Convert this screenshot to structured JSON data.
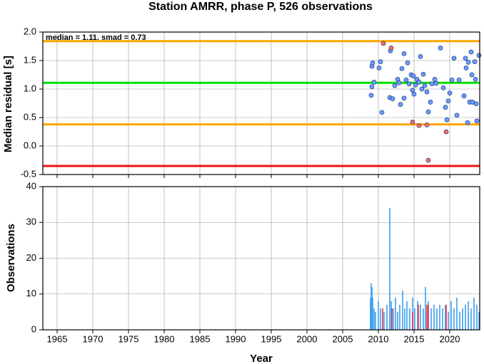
{
  "chart_data": [
    {
      "type": "scatter",
      "title": "Station AMRR, phase P, 526 observations",
      "annotation": "median = 1.11, smad = 0.73",
      "y_label": "Median residual [s]",
      "xlim": [
        1963,
        2024.2
      ],
      "ylim": [
        -0.5,
        2.0
      ],
      "yticks": [
        {
          "value": 2.0,
          "label": "2.0"
        },
        {
          "value": 1.5,
          "label": "1.5"
        },
        {
          "value": 1.0,
          "label": "1.0"
        },
        {
          "value": 0.5,
          "label": "0.5"
        },
        {
          "value": 0.0,
          "label": "0.0"
        },
        {
          "value": -0.5,
          "label": "-0.5"
        }
      ],
      "grid": true,
      "reference_lines": [
        {
          "value": 1.84,
          "color": "#ffa500"
        },
        {
          "value": 1.11,
          "color": "#00e000"
        },
        {
          "value": 0.38,
          "color": "#ffa500"
        },
        {
          "value": -0.35,
          "color": "#ee1111"
        }
      ],
      "series": [
        {
          "color": "#6f9cff",
          "x": [
            2009.0,
            2009.1,
            2009.1,
            2009.2,
            2009.4,
            2010.1,
            2010.3,
            2010.5,
            2011.7,
            2011.6,
            2012.0,
            2012.3,
            2012.7,
            2012.9,
            2013.1,
            2013.3,
            2013.6,
            2013.6,
            2013.9,
            2014.1,
            2014.3,
            2014.6,
            2014.9,
            2014.8,
            2015.0,
            2015.2,
            2015.4,
            2015.7,
            2015.9,
            2016.1,
            2016.3,
            2016.5,
            2016.8,
            2017.0,
            2017.3,
            2017.5,
            2017.9,
            2018.1,
            2018.7,
            2019.1,
            2019.4,
            2019.6,
            2019.8,
            2020.0,
            2020.3,
            2020.6,
            2021.0,
            2021.3,
            2022.0,
            2022.2,
            2022.3,
            2022.5,
            2022.6,
            2022.8,
            2023.0,
            2023.1,
            2023.2,
            2023.5,
            2023.6,
            2023.7,
            2023.8,
            2024.1
          ],
          "values": [
            0.89,
            1.04,
            1.4,
            1.46,
            1.12,
            1.37,
            1.48,
            0.59,
            1.67,
            0.85,
            0.83,
            1.06,
            1.17,
            1.11,
            0.73,
            1.36,
            1.62,
            0.84,
            1.16,
            1.46,
            1.09,
            1.25,
            1.23,
            0.98,
            0.91,
            1.07,
            1.17,
            1.12,
            1.57,
            1.0,
            1.26,
            1.06,
            0.95,
            0.6,
            0.77,
            1.09,
            1.17,
            1.1,
            1.72,
            1.02,
            0.68,
            0.46,
            0.79,
            0.93,
            1.16,
            1.54,
            0.54,
            1.16,
            0.88,
            1.54,
            1.37,
            0.41,
            1.47,
            0.77,
            1.65,
            1.25,
            0.77,
            1.48,
            1.17,
            0.74,
            0.44,
            1.59
          ]
        },
        {
          "color": "#ff6f5e",
          "x": [
            2010.7,
            2011.8,
            2014.8,
            2015.7,
            2016.8,
            2017.0,
            2019.5
          ],
          "values": [
            1.8,
            1.72,
            0.42,
            0.36,
            0.37,
            -0.25,
            0.25
          ]
        }
      ]
    },
    {
      "type": "bar",
      "x_label": "Year",
      "y_label": "Observations",
      "xlim": [
        1963,
        2024.2
      ],
      "ylim": [
        0,
        40
      ],
      "xticks": [
        1965,
        1970,
        1975,
        1980,
        1985,
        1990,
        1995,
        2000,
        2005,
        2010,
        2015,
        2020
      ],
      "yticks": [
        0,
        10,
        20,
        30,
        40
      ],
      "grid": true,
      "series": [
        {
          "color": "#3a9ff0",
          "x": [
            2008.9,
            2009.0,
            2009.1,
            2009.2,
            2009.4,
            2009.6,
            2010.0,
            2010.3,
            2010.8,
            2011.2,
            2011.6,
            2011.8,
            2012.1,
            2012.4,
            2012.7,
            2013.0,
            2013.4,
            2013.7,
            2014.0,
            2014.4,
            2014.8,
            2015.1,
            2015.5,
            2015.9,
            2016.3,
            2016.6,
            2017.0,
            2017.4,
            2017.8,
            2018.2,
            2018.6,
            2019.0,
            2019.4,
            2019.8,
            2020.2,
            2020.6,
            2021.0,
            2021.4,
            2021.8,
            2022.2,
            2022.6,
            2023.0,
            2023.4,
            2023.8,
            2024.1
          ],
          "values": [
            9,
            13,
            12,
            9,
            6,
            5,
            8,
            6,
            5,
            7,
            34,
            8,
            6,
            9,
            5,
            7,
            11,
            6,
            8,
            6,
            9,
            6,
            8,
            7,
            6,
            12,
            8,
            6,
            7,
            6,
            7,
            6,
            7,
            5,
            8,
            6,
            9,
            5,
            6,
            7,
            8,
            6,
            9,
            7,
            5
          ]
        },
        {
          "color": "#e8334a",
          "x": [
            2010.6,
            2011.9,
            2014.8,
            2015.6,
            2016.8,
            2017.0,
            2019.5
          ],
          "values": [
            6,
            6,
            5,
            7,
            7,
            7,
            7
          ]
        }
      ]
    }
  ]
}
